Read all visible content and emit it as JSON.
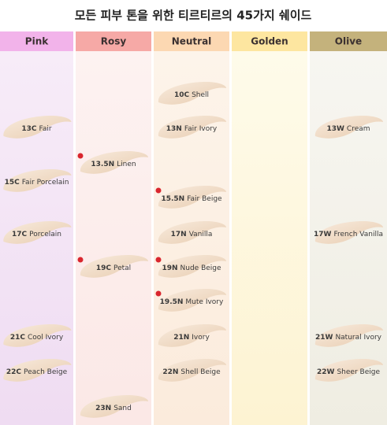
{
  "title": "모든 피부 톤을 위한 티르티르의 45가지 쉐이드",
  "columns": [
    {
      "header": "Pink",
      "shades": [
        {
          "code": "13C",
          "name": "Fair"
        },
        {
          "code": "15C",
          "name": "Fair Porcelain"
        },
        {
          "code": "17C",
          "name": "Porcelain"
        },
        {
          "code": "21C",
          "name": "Cool Ivory"
        },
        {
          "code": "22C",
          "name": "Peach Beige"
        }
      ]
    },
    {
      "header": "Rosy",
      "shades": [
        {
          "code": "13.5N",
          "name": "Linen",
          "dot": true
        },
        {
          "code": "19C",
          "name": "Petal",
          "dot": true
        },
        {
          "code": "23N",
          "name": "Sand"
        }
      ]
    },
    {
      "header": "Neutral",
      "shades": [
        {
          "code": "10C",
          "name": "Shell"
        },
        {
          "code": "13N",
          "name": "Fair Ivory"
        },
        {
          "code": "15.5N",
          "name": "Fair Beige",
          "dot": true
        },
        {
          "code": "17N",
          "name": "Vanilla"
        },
        {
          "code": "19N",
          "name": "Nude Beige",
          "dot": true
        },
        {
          "code": "19.5N",
          "name": "Mute Ivory",
          "dot": true
        },
        {
          "code": "21N",
          "name": "Ivory"
        },
        {
          "code": "22N",
          "name": "Shell Beige"
        }
      ]
    },
    {
      "header": "Golden",
      "shades": []
    },
    {
      "header": "Olive",
      "shades": [
        {
          "code": "13W",
          "name": "Cream"
        },
        {
          "code": "17W",
          "name": "French Vanilla"
        },
        {
          "code": "21W",
          "name": "Natural Ivory"
        },
        {
          "code": "22W",
          "name": "Sheer Beige"
        }
      ]
    }
  ]
}
